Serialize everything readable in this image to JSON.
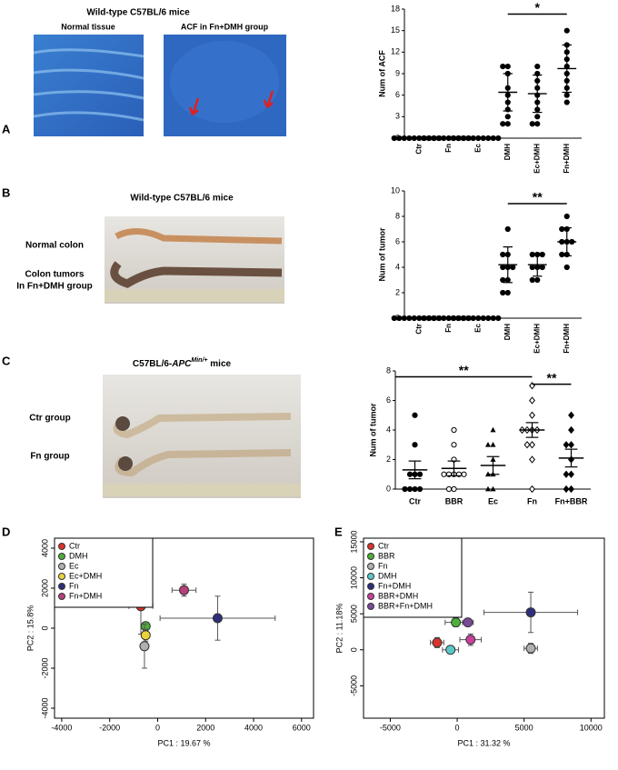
{
  "panel_labels": [
    "A",
    "B",
    "C",
    "D",
    "E"
  ],
  "images": {
    "A": {
      "title": "Wild-type C57BL/6 mice",
      "captions": [
        "Normal tissue",
        "ACF in Fn+DMH group"
      ]
    },
    "B": {
      "title": "Wild-type C57BL/6 mice",
      "captions": [
        "Normal colon",
        "Colon tumors",
        "In Fn+DMH group"
      ]
    },
    "C": {
      "title_parts": [
        "C57BL/6-",
        "APC",
        "Min/+",
        " mice"
      ],
      "captions": [
        "Ctr group",
        "Fn group"
      ]
    }
  },
  "chart_data": [
    {
      "type": "dot",
      "ylabel": "Num of ACF",
      "categories": [
        "Ctr",
        "Fn",
        "Ec",
        "DMH",
        "Ec+DMH",
        "Fn+DMH"
      ],
      "markers": [
        "circle",
        "circle",
        "circle",
        "circle",
        "circle",
        "circle"
      ],
      "points": [
        [
          0,
          0,
          0,
          0,
          0,
          0,
          0,
          0,
          0,
          0
        ],
        [
          0,
          0,
          0,
          0,
          0,
          0,
          0,
          0,
          0,
          0
        ],
        [
          0,
          0,
          0,
          0,
          0,
          0,
          0,
          0,
          0,
          0
        ],
        [
          10,
          10,
          9,
          7,
          6,
          5,
          4,
          3,
          2,
          2
        ],
        [
          10,
          9,
          8,
          7,
          6,
          5,
          4,
          3,
          2,
          2
        ],
        [
          15,
          13,
          12,
          11,
          10,
          9,
          8,
          7,
          6,
          5
        ]
      ],
      "means": [
        0,
        0,
        0,
        6.4,
        6.2,
        9.7
      ],
      "errors": [
        0,
        0,
        0,
        2.6,
        2.6,
        3.3
      ],
      "ylim": [
        0,
        18
      ],
      "yticks": [
        0,
        3,
        6,
        9,
        12,
        15,
        18
      ],
      "annotations": [
        {
          "text": "*",
          "from": "DMH",
          "to": "Fn+DMH",
          "y": 17.3
        }
      ]
    },
    {
      "type": "dot",
      "ylabel": "Num of tumor",
      "categories": [
        "Ctr",
        "Fn",
        "Ec",
        "DMH",
        "Ec+DMH",
        "Fn+DMH"
      ],
      "markers": [
        "circle",
        "circle",
        "circle",
        "circle",
        "circle",
        "circle"
      ],
      "points": [
        [
          0,
          0,
          0,
          0,
          0,
          0,
          0,
          0,
          0,
          0
        ],
        [
          0,
          0,
          0,
          0,
          0,
          0,
          0,
          0,
          0,
          0
        ],
        [
          0,
          0,
          0,
          0,
          0,
          0,
          0,
          0,
          0,
          0
        ],
        [
          7,
          5,
          5,
          4,
          4,
          4,
          3,
          3,
          2,
          2
        ],
        [
          5,
          5,
          5,
          4,
          4,
          4,
          3,
          3
        ],
        [
          8,
          7,
          7,
          6,
          6,
          6,
          5,
          5,
          4
        ]
      ],
      "means": [
        0,
        0,
        0,
        4.2,
        4.2,
        6.0
      ],
      "errors": [
        0,
        0,
        0,
        1.4,
        0.9,
        1.1
      ],
      "ylim": [
        0,
        10
      ],
      "yticks": [
        0,
        2,
        4,
        6,
        8,
        10
      ],
      "annotations": [
        {
          "text": "**",
          "from": "DMH",
          "to": "Fn+DMH",
          "y": 9.0
        }
      ]
    },
    {
      "type": "dot",
      "ylabel": "Num of tumor",
      "categories": [
        "Ctr",
        "BBR",
        "Ec",
        "Fn",
        "Fn+BBR"
      ],
      "markers": [
        "circle",
        "open-circle",
        "triangle",
        "open-diamond",
        "diamond"
      ],
      "points": [
        [
          5,
          3,
          1,
          1,
          1,
          0,
          0,
          0,
          0
        ],
        [
          4,
          3,
          2,
          1,
          1,
          1,
          1,
          1,
          0,
          0
        ],
        [
          4,
          3,
          3,
          2,
          1,
          1,
          0,
          0
        ],
        [
          7,
          6,
          5,
          4,
          4,
          4,
          4,
          3,
          3,
          2,
          0
        ],
        [
          5,
          4,
          3,
          3,
          2,
          1,
          1,
          0,
          0
        ]
      ],
      "means": [
        1.3,
        1.4,
        1.6,
        4.0,
        2.1
      ],
      "errors": [
        0.6,
        0.5,
        0.6,
        0.5,
        0.6
      ],
      "ylim": [
        0,
        8
      ],
      "yticks": [
        0,
        2,
        4,
        6,
        8
      ],
      "annotations": [
        {
          "text": "**",
          "from": "Ctr",
          "to": "Fn",
          "y": 7.6
        },
        {
          "text": "**",
          "from": "Fn",
          "to": "Fn+BBR",
          "y": 7.1
        }
      ]
    },
    {
      "type": "scatter",
      "xlabel": "PC1 : 19.67 %",
      "ylabel": "PC2 : 15.8%",
      "xlim": [
        -4300,
        6500
      ],
      "xticks": [
        -4000,
        -2000,
        0,
        2000,
        4000,
        6000
      ],
      "ylim": [
        -4500,
        4500
      ],
      "yticks": [
        -4000,
        -2000,
        0,
        2000,
        4000
      ],
      "legend": "top-left",
      "series": [
        {
          "name": "Ctr",
          "color": "#d9342b",
          "x": -700,
          "y": 1100,
          "xerr": 500,
          "yerr": 1400
        },
        {
          "name": "DMH",
          "color": "#4caf3a",
          "x": -500,
          "y": 100,
          "xerr": 150,
          "yerr": 150
        },
        {
          "name": "Ec",
          "color": "#b0b0b0",
          "x": -550,
          "y": -900,
          "xerr": 150,
          "yerr": 1100
        },
        {
          "name": "Ec+DMH",
          "color": "#e8d43a",
          "x": -500,
          "y": -350,
          "xerr": 150,
          "yerr": 300
        },
        {
          "name": "Fn",
          "color": "#2e2f7a",
          "x": 2500,
          "y": 500,
          "xerr": 2400,
          "yerr": 1100
        },
        {
          "name": "Fn+DMH",
          "color": "#b8407a",
          "x": 1100,
          "y": 1900,
          "xerr": 500,
          "yerr": 300
        }
      ]
    },
    {
      "type": "scatter",
      "xlabel": "PC1 : 31.32 %",
      "ylabel": "PC2 : 11.18%",
      "xlim": [
        -7000,
        11000
      ],
      "xticks": [
        -5000,
        0,
        5000,
        10000
      ],
      "ylim": [
        -9500,
        15500
      ],
      "yticks": [
        -5000,
        0,
        5000,
        10000,
        15000
      ],
      "legend": "top-left",
      "series": [
        {
          "name": "Ctr",
          "color": "#d9342b",
          "x": -1500,
          "y": 1000,
          "xerr": 500,
          "yerr": 700
        },
        {
          "name": "BBR",
          "color": "#4caf3a",
          "x": -100,
          "y": 3800,
          "xerr": 800,
          "yerr": 600
        },
        {
          "name": "Fn",
          "color": "#b0b0b0",
          "x": 5500,
          "y": 200,
          "xerr": 500,
          "yerr": 700
        },
        {
          "name": "DMH",
          "color": "#5bc8c8",
          "x": -500,
          "y": 0,
          "xerr": 600,
          "yerr": 300
        },
        {
          "name": "Fn+DMH",
          "color": "#2e2f7a",
          "x": 5500,
          "y": 5200,
          "xerr": 3500,
          "yerr": 2800
        },
        {
          "name": "BBR+DMH",
          "color": "#c8409a",
          "x": 1000,
          "y": 1400,
          "xerr": 800,
          "yerr": 800
        },
        {
          "name": "BBR+Fn+DMH",
          "color": "#7a4a9a",
          "x": 800,
          "y": 3800,
          "xerr": 400,
          "yerr": 500
        }
      ]
    }
  ]
}
